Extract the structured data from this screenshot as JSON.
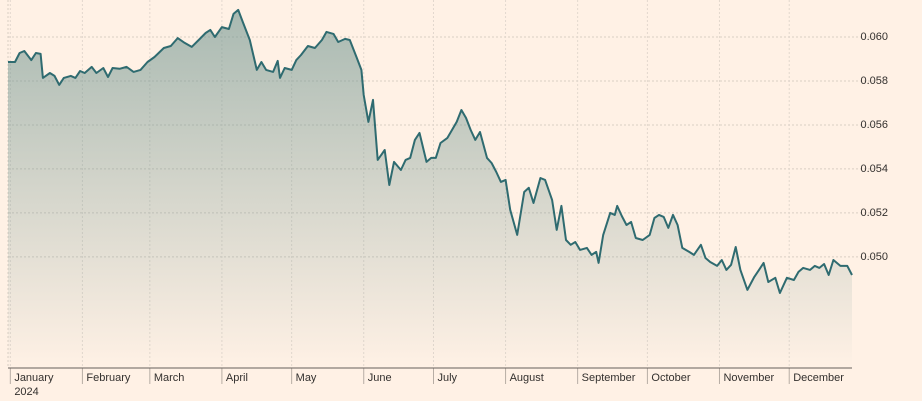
{
  "chart_data": {
    "type": "area-line",
    "color": "#2f6b70",
    "fill_color": "#6f948f",
    "x": [
      -1,
      2,
      4,
      6,
      9,
      11,
      13,
      14,
      17,
      19,
      21,
      23,
      26,
      28,
      30,
      32,
      35,
      37,
      40,
      42,
      44,
      47,
      50,
      53,
      56,
      59,
      62,
      66,
      69,
      72,
      75,
      78,
      81,
      84,
      86,
      88,
      91,
      94,
      96,
      98,
      100,
      103,
      106,
      108,
      110,
      113,
      115,
      116,
      118,
      121,
      123,
      125,
      128,
      131,
      134,
      136,
      139,
      141,
      144,
      146,
      149,
      151,
      152,
      154,
      156,
      158,
      161,
      163,
      165,
      168,
      170,
      172,
      174,
      176,
      179,
      181,
      183,
      185,
      188,
      192,
      194,
      196,
      198,
      200,
      202,
      205,
      207,
      209,
      211,
      213,
      215,
      218,
      221,
      223,
      225,
      228,
      230,
      233,
      235,
      237,
      239,
      241,
      243,
      245,
      248,
      250,
      252,
      253,
      255,
      258,
      260,
      261,
      263,
      265,
      267,
      269,
      272,
      275,
      277,
      279,
      281,
      283,
      285,
      287,
      289,
      292,
      294,
      297,
      299,
      301,
      304,
      306,
      308,
      310,
      312,
      314,
      317,
      320,
      322,
      324,
      326,
      329,
      331,
      334,
      337,
      339,
      341,
      344,
      346,
      348,
      350,
      352,
      354,
      357,
      360,
      362
    ],
    "values": [
      0.05886,
      0.05886,
      0.05927,
      0.05936,
      0.05895,
      0.05927,
      0.05923,
      0.05814,
      0.05836,
      0.05823,
      0.05782,
      0.05814,
      0.05823,
      0.05814,
      0.05845,
      0.05836,
      0.05864,
      0.05836,
      0.05859,
      0.05818,
      0.05859,
      0.05855,
      0.05864,
      0.05841,
      0.0585,
      0.05886,
      0.05909,
      0.0595,
      0.05959,
      0.05995,
      0.05973,
      0.05955,
      0.05986,
      0.06018,
      0.06032,
      0.06,
      0.06045,
      0.06036,
      0.06105,
      0.06123,
      0.06068,
      0.05986,
      0.0585,
      0.05886,
      0.0585,
      0.05841,
      0.05891,
      0.05814,
      0.05859,
      0.0585,
      0.05895,
      0.05918,
      0.05959,
      0.0595,
      0.05986,
      0.06023,
      0.06014,
      0.05977,
      0.05991,
      0.05986,
      0.05905,
      0.0585,
      0.05736,
      0.05614,
      0.05714,
      0.05441,
      0.05486,
      0.05327,
      0.05432,
      0.05395,
      0.05441,
      0.0545,
      0.05532,
      0.05564,
      0.05432,
      0.0545,
      0.0545,
      0.05518,
      0.05541,
      0.05614,
      0.05668,
      0.05632,
      0.05577,
      0.05532,
      0.05568,
      0.0545,
      0.05427,
      0.05386,
      0.05341,
      0.0535,
      0.05214,
      0.051,
      0.05295,
      0.05314,
      0.05245,
      0.05359,
      0.0535,
      0.05259,
      0.05123,
      0.05232,
      0.05077,
      0.05055,
      0.05068,
      0.05032,
      0.05041,
      0.05009,
      0.05023,
      0.04973,
      0.051,
      0.052,
      0.05191,
      0.05232,
      0.05186,
      0.05145,
      0.05159,
      0.05086,
      0.05077,
      0.051,
      0.05177,
      0.05191,
      0.05182,
      0.05132,
      0.05191,
      0.05145,
      0.05041,
      0.05023,
      0.05009,
      0.05055,
      0.04995,
      0.04977,
      0.04959,
      0.04986,
      0.04941,
      0.04964,
      0.05045,
      0.04941,
      0.0485,
      0.04909,
      0.04941,
      0.04973,
      0.04886,
      0.04905,
      0.04836,
      0.04905,
      0.04895,
      0.04932,
      0.0495,
      0.04941,
      0.04959,
      0.0495,
      0.04968,
      0.04918,
      0.04986,
      0.04959,
      0.04959,
      0.04918
    ],
    "xlim": [
      -1,
      362
    ],
    "xticks": [
      {
        "value": 0,
        "label": "January"
      },
      {
        "value": 31,
        "label": "February"
      },
      {
        "value": 60,
        "label": "March"
      },
      {
        "value": 91,
        "label": "April"
      },
      {
        "value": 121,
        "label": "May"
      },
      {
        "value": 152,
        "label": "June"
      },
      {
        "value": 182,
        "label": "July"
      },
      {
        "value": 213,
        "label": "August"
      },
      {
        "value": 244,
        "label": "September"
      },
      {
        "value": 274,
        "label": "October"
      },
      {
        "value": 305,
        "label": "November"
      },
      {
        "value": 335,
        "label": "December"
      }
    ],
    "year_label": "2024",
    "ylim": [
      0.04495,
      0.06168
    ],
    "yticks": [
      {
        "value": 0.05,
        "label": "0.050"
      },
      {
        "value": 0.052,
        "label": "0.052"
      },
      {
        "value": 0.054,
        "label": "0.054"
      },
      {
        "value": 0.056,
        "label": "0.056"
      },
      {
        "value": 0.058,
        "label": "0.058"
      },
      {
        "value": 0.06,
        "label": "0.060"
      }
    ],
    "grid": true
  }
}
